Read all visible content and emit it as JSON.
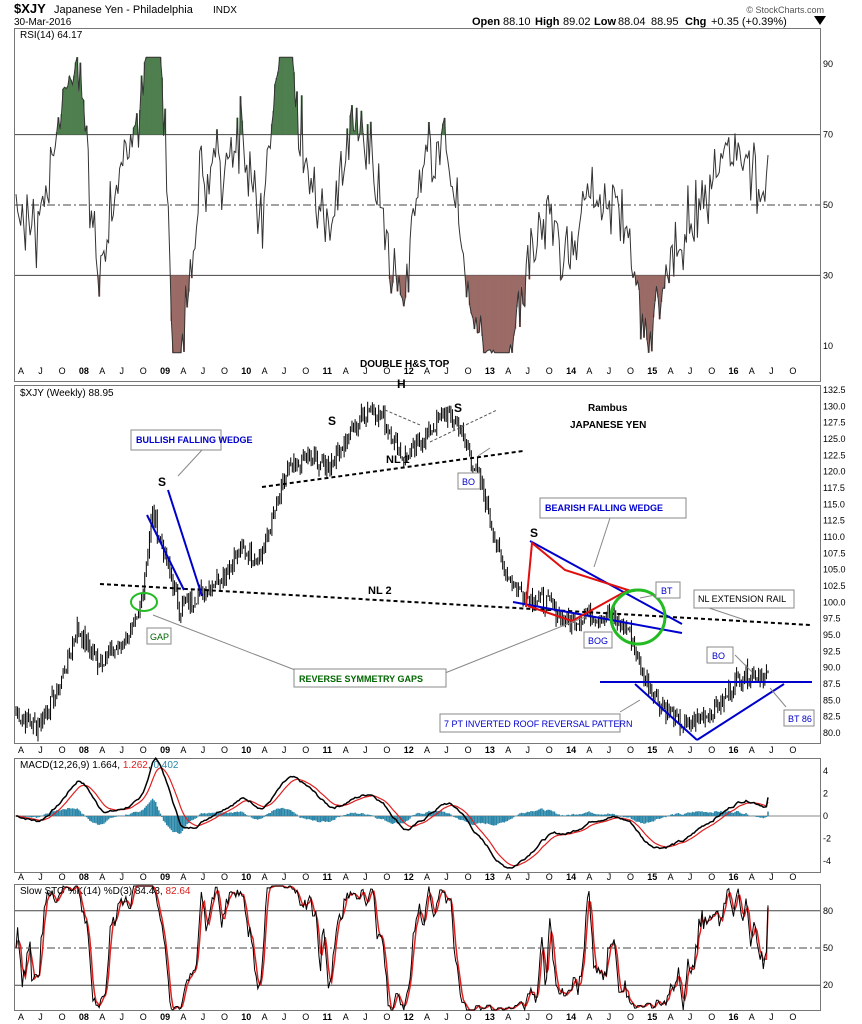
{
  "header": {
    "symbol": "$XJY",
    "name": "Japanese Yen - Philadelphia",
    "exchange": "INDX",
    "date": "30-Mar-2016",
    "open_label": "Open",
    "open": "88.10",
    "high_label": "High",
    "high": "89.02",
    "low_label": "Low",
    "low": "88.04",
    "close": "88.95",
    "chg_label": "Chg",
    "chg": "+0.35 (+0.39%)",
    "copyright": "© StockCharts.com"
  },
  "rsi_panel": {
    "label": "RSI(14) 64.17",
    "ticks": [
      "90",
      "70",
      "50",
      "30",
      "10"
    ],
    "title_above_price": "DOUBLE H&S TOP"
  },
  "price_panel": {
    "label": "$XJY (Weekly) 88.95",
    "ticks": [
      "132.5",
      "130.0",
      "127.5",
      "125.0",
      "122.5",
      "120.0",
      "117.5",
      "115.0",
      "112.5",
      "110.0",
      "107.5",
      "105.0",
      "102.5",
      "100.0",
      "97.5",
      "95.0",
      "92.5",
      "90.0",
      "87.5",
      "85.0",
      "82.5",
      "80.0"
    ]
  },
  "annotations": {
    "author": "Rambus",
    "subtitle": "JAPANESE YEN",
    "bullish_wedge": "BULLISH FALLING WEDGE",
    "bearish_wedge": "BEARISH FALLING WEDGE",
    "nl1": "NL 1",
    "nl2": "NL 2",
    "head": "H",
    "shoulder_left_1": "S",
    "shoulder_left_2": "S",
    "shoulder_right": "S",
    "shoulder_s2": "S",
    "bo1": "BO",
    "bt": "BT",
    "bog": "BOG",
    "gap": "GAP",
    "nl_ext": "NL EXTENSION RAIL",
    "reverse_gaps": "REVERSE SYMMETRY GAPS",
    "bo2": "BO",
    "roof": "7 PT INVERTED ROOF REVERSAL PATTERN",
    "bt86": "BT 86"
  },
  "macd_panel": {
    "label_prefix": "MACD(12,26,9)",
    "macd": "1.664",
    "signal": "1.262",
    "hist": "0.402",
    "ticks": [
      "4",
      "2",
      "0",
      "-2",
      "-4"
    ]
  },
  "sto_panel": {
    "label_prefix": "Slow STO %K(14) %D(3)",
    "k": "84.43",
    "d": "82.64",
    "ticks": [
      "80",
      "50",
      "20"
    ]
  },
  "x_axis_labels": [
    "A",
    "J",
    "O",
    "08",
    "A",
    "J",
    "O",
    "09",
    "A",
    "J",
    "O",
    "10",
    "A",
    "J",
    "O",
    "11",
    "A",
    "J",
    "O",
    "12",
    "A",
    "J",
    "O",
    "13",
    "A",
    "J",
    "O",
    "14",
    "A",
    "J",
    "O",
    "15",
    "A",
    "J",
    "O",
    "16",
    "A",
    "J",
    "O"
  ],
  "colors": {
    "rsi_overbought": "#4f7f4f",
    "rsi_oversold": "#9b6b66",
    "annot_blue": "#0000cc",
    "annot_green": "#006600",
    "wedge_red": "#e01010",
    "circle_green": "#22bb22",
    "macd_hist": "#2a86a8",
    "signal_red": "#e02020"
  },
  "chart_data": {
    "type": "line",
    "title": "$XJY Japanese Yen - Philadelphia (Weekly)",
    "x_range": [
      "2007-04",
      "2016-10"
    ],
    "ylim": [
      79,
      133
    ],
    "series": [
      {
        "name": "$XJY (Weekly)",
        "x": [
          "2007-04",
          "2007-07",
          "2007-10",
          "2008-01",
          "2008-04",
          "2008-07",
          "2008-10",
          "2008-12",
          "2009-04",
          "2009-08",
          "2009-11",
          "2010-01",
          "2010-04",
          "2010-06",
          "2010-08",
          "2010-11",
          "2011-02",
          "2011-04",
          "2011-08",
          "2011-10",
          "2012-01",
          "2012-04",
          "2012-07",
          "2012-09",
          "2012-11",
          "2013-01",
          "2013-03",
          "2013-05",
          "2013-07",
          "2013-10",
          "2014-01",
          "2014-04",
          "2014-07",
          "2014-10",
          "2014-12",
          "2015-03",
          "2015-06",
          "2015-08",
          "2015-10",
          "2015-12",
          "2016-02",
          "2016-03"
        ],
        "values": [
          83,
          81,
          86,
          96,
          91,
          93,
          97,
          114,
          99,
          102,
          105,
          108,
          107,
          114,
          120,
          122,
          121,
          124,
          130,
          128,
          122,
          125,
          129,
          127,
          122,
          116,
          107,
          103,
          101,
          100,
          97,
          98,
          98,
          96,
          89,
          84,
          81,
          82,
          83,
          85,
          88,
          89
        ]
      }
    ],
    "rsi": {
      "ylim": [
        0,
        100
      ],
      "levels": [
        30,
        50,
        70
      ],
      "last": 64.17
    },
    "macd": {
      "macd": 1.664,
      "signal": 1.262,
      "histogram": 0.402,
      "ylim": [
        -5,
        5
      ]
    },
    "stochastic": {
      "k": 84.43,
      "d": 82.64,
      "levels": [
        20,
        50,
        80
      ],
      "ylim": [
        0,
        100
      ]
    }
  }
}
